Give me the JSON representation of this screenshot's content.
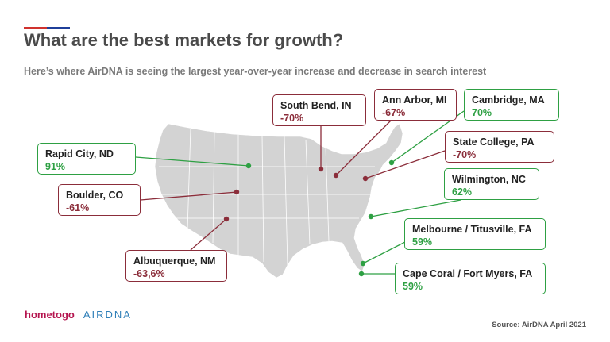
{
  "title": "What are the best markets for growth?",
  "subtitle": "Here’s where AirDNA is seeing the largest year-over-year increase and decrease in search interest",
  "colors": {
    "increase": "#2ea043",
    "decrease": "#8b2d3a",
    "bar_red": "#d0322e",
    "bar_blue": "#1f3f99",
    "land": "#d3d3d3"
  },
  "markets": [
    {
      "id": "south-bend",
      "city": "South Bend, IN",
      "value": "-70%",
      "trend": "decrease"
    },
    {
      "id": "ann-arbor",
      "city": "Ann Arbor, MI",
      "value": "-67%",
      "trend": "decrease"
    },
    {
      "id": "cambridge",
      "city": "Cambridge, MA",
      "value": "70%",
      "trend": "increase"
    },
    {
      "id": "rapid-city",
      "city": "Rapid City, ND",
      "value": "91%",
      "trend": "increase"
    },
    {
      "id": "state-college",
      "city": "State College, PA",
      "value": "-70%",
      "trend": "decrease"
    },
    {
      "id": "boulder",
      "city": "Boulder, CO",
      "value": "-61%",
      "trend": "decrease"
    },
    {
      "id": "wilmington",
      "city": "Wilmington, NC",
      "value": "62%",
      "trend": "increase"
    },
    {
      "id": "melbourne",
      "city": "Melbourne / Titusville, FA",
      "value": "59%",
      "trend": "increase"
    },
    {
      "id": "albuquerque",
      "city": "Albuquerque, NM",
      "value": "-63,6%",
      "trend": "decrease"
    },
    {
      "id": "cape-coral",
      "city": "Cape Coral / Fort Myers, FA",
      "value": "59%",
      "trend": "increase"
    }
  ],
  "logo": {
    "left": "hometogo",
    "right": "AIRDNA"
  },
  "source": "Source: AirDNA April 2021"
}
